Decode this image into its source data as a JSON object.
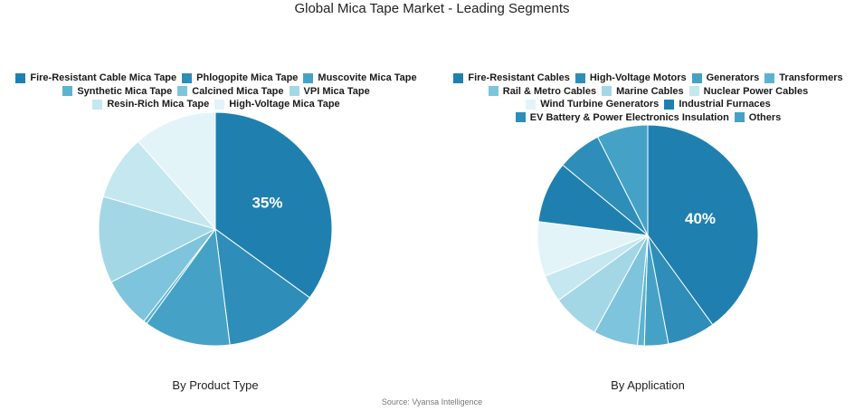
{
  "title": "Global Mica Tape Market - Leading Segments",
  "source": "Source: Vyansa Intelligence",
  "chart_data": [
    {
      "type": "pie",
      "subtitle": "By Product Type",
      "legend_rows": [
        [
          0,
          1,
          2
        ],
        [
          3,
          4,
          5
        ],
        [
          6,
          7
        ]
      ],
      "slices": [
        {
          "label": "Fire-Resistant Cable Mica Tape",
          "value": 35,
          "color": "#1f80b0",
          "show_label": "35%"
        },
        {
          "label": "Phlogopite Mica Tape",
          "value": 13,
          "color": "#2e8db9"
        },
        {
          "label": "Muscovite Mica Tape",
          "value": 12,
          "color": "#45a2c6"
        },
        {
          "label": "Synthetic Mica Tape",
          "value": 0.5,
          "color": "#5cb3d0"
        },
        {
          "label": "Calcined Mica Tape",
          "value": 7,
          "color": "#7ec4dc"
        },
        {
          "label": "VPI Mica Tape",
          "value": 12,
          "color": "#a3d7e6"
        },
        {
          "label": "Resin-Rich Mica Tape",
          "value": 9,
          "color": "#c5e7ef"
        },
        {
          "label": "High-Voltage Mica Tape",
          "value": 11.5,
          "color": "#e3f4f8"
        }
      ]
    },
    {
      "type": "pie",
      "subtitle": "By Application",
      "legend_rows": [
        [
          0,
          1,
          2,
          3
        ],
        [
          4,
          5,
          6
        ],
        [
          7,
          8
        ],
        [
          9,
          10
        ]
      ],
      "slices": [
        {
          "label": "Fire-Resistant Cables",
          "value": 40,
          "color": "#1f80b0",
          "show_label": "40%"
        },
        {
          "label": "High-Voltage Motors",
          "value": 7,
          "color": "#2e8db9"
        },
        {
          "label": "Generators",
          "value": 3.5,
          "color": "#45a2c6"
        },
        {
          "label": "Transformers",
          "value": 1,
          "color": "#5cb3d0"
        },
        {
          "label": "Rail & Metro Cables",
          "value": 6.5,
          "color": "#7ec4dc"
        },
        {
          "label": "Marine Cables",
          "value": 7,
          "color": "#a3d7e6"
        },
        {
          "label": "Nuclear Power Cables",
          "value": 4,
          "color": "#c5e7ef"
        },
        {
          "label": "Wind Turbine Generators",
          "value": 8,
          "color": "#e3f4f8"
        },
        {
          "label": "Industrial Furnaces",
          "value": 9,
          "color": "#1f80b0"
        },
        {
          "label": "EV Battery & Power Electronics Insulation",
          "value": 6.5,
          "color": "#2e8db9"
        },
        {
          "label": "Others",
          "value": 7.5,
          "color": "#45a2c6"
        }
      ]
    }
  ]
}
